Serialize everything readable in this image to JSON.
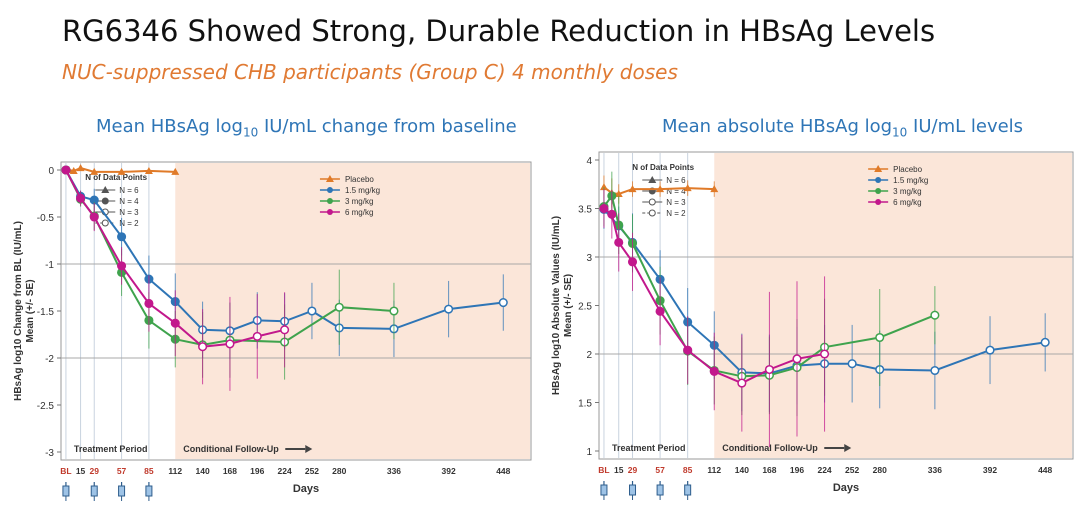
{
  "slide": {
    "title": "RG6346 Showed Strong, Durable Reduction in HBsAg Levels",
    "subtitle": "NUC-suppressed CHB participants (Group C) 4 monthly doses"
  },
  "colors": {
    "placebo": "#E07A28",
    "dose_1_5": "#2E75B6",
    "dose_3": "#3FA34D",
    "dose_6": "#C2188C",
    "followup_bg": "#FBE6D9",
    "title_blue": "#2E75B6",
    "subtitle_orange": "#E07A33"
  },
  "chart_data": [
    {
      "type": "line",
      "title_main": "Mean HBsAg log",
      "title_sub": "10",
      "title_end": " IU/mL change from baseline",
      "ylabel_line1": "HBsAg log10 Change from BL (IU/mL)",
      "ylabel_line2": "Mean (+/- SE)",
      "xlabel": "Days",
      "ylim": [
        -3,
        0
      ],
      "yticks": [
        0,
        -0.5,
        -1,
        -1.5,
        -2,
        -2.5,
        -3
      ],
      "ytick_labels": [
        "0",
        "-0.5",
        "-1",
        "-1.5",
        "-2",
        "-2.5",
        "-3"
      ],
      "gridlines": [
        -1,
        -2
      ],
      "xticks": [
        0,
        15,
        29,
        57,
        85,
        112,
        140,
        168,
        196,
        224,
        252,
        280,
        336,
        392,
        448
      ],
      "xtick_labels": [
        "BL",
        "15",
        "29",
        "57",
        "85",
        "112",
        "140",
        "168",
        "196",
        "224",
        "252",
        "280",
        "336",
        "392",
        "448"
      ],
      "followup_start": 112,
      "legend_placement": "top-center",
      "n_legend": {
        "title": "N of Data Points",
        "items": [
          "N = 6",
          "N = 4",
          "N = 3",
          "N = 2"
        ]
      },
      "treatment_label": "Treatment Period",
      "followup_label": "Conditional Follow-Up",
      "series": [
        {
          "name": "Placebo",
          "color": "#E07A28",
          "marker": "triangle",
          "points": [
            [
              0,
              0
            ],
            [
              3,
              0
            ],
            [
              8,
              -0.01
            ],
            [
              15,
              0.02
            ],
            [
              29,
              -0.02
            ],
            [
              57,
              -0.02
            ],
            [
              85,
              -0.01
            ],
            [
              112,
              -0.02
            ]
          ],
          "errors": [
            0,
            0,
            0,
            0.03,
            0.03,
            0.03,
            0.03,
            0.03
          ]
        },
        {
          "name": "1.5 mg/kg",
          "color": "#2E75B6",
          "marker": "circle",
          "points": [
            [
              0,
              0
            ],
            [
              15,
              -0.28
            ],
            [
              29,
              -0.32
            ],
            [
              57,
              -0.71
            ],
            [
              85,
              -1.16
            ],
            [
              112,
              -1.4
            ],
            [
              140,
              -1.7
            ],
            [
              168,
              -1.71
            ],
            [
              196,
              -1.6
            ],
            [
              224,
              -1.61
            ],
            [
              252,
              -1.5
            ],
            [
              280,
              -1.68
            ],
            [
              336,
              -1.69
            ],
            [
              392,
              -1.48
            ],
            [
              448,
              -1.41
            ]
          ],
          "errors": [
            0,
            0.06,
            0.12,
            0.2,
            0.25,
            0.3,
            0.3,
            0.3,
            0.3,
            0.3,
            0.3,
            0.3,
            0.3,
            0.3,
            0.3
          ],
          "open_from_index": 6
        },
        {
          "name": "3 mg/kg",
          "color": "#3FA34D",
          "marker": "circle",
          "points": [
            [
              0,
              0
            ],
            [
              15,
              -0.31
            ],
            [
              29,
              -0.49
            ],
            [
              57,
              -1.09
            ],
            [
              85,
              -1.6
            ],
            [
              112,
              -1.8
            ],
            [
              140,
              -1.86
            ],
            [
              168,
              -1.81
            ],
            [
              224,
              -1.83
            ],
            [
              280,
              -1.46
            ],
            [
              336,
              -1.5
            ]
          ],
          "errors": [
            0,
            0.08,
            0.15,
            0.25,
            0.3,
            0.3,
            0.35,
            0.4,
            0.4,
            0.4,
            0.3
          ],
          "open_from_index": 6
        },
        {
          "name": "6 mg/kg",
          "color": "#C2188C",
          "marker": "circle",
          "points": [
            [
              0,
              0
            ],
            [
              15,
              -0.3
            ],
            [
              29,
              -0.5
            ],
            [
              57,
              -1.02
            ],
            [
              85,
              -1.42
            ],
            [
              112,
              -1.63
            ],
            [
              140,
              -1.88
            ],
            [
              168,
              -1.85
            ],
            [
              196,
              -1.77
            ],
            [
              224,
              -1.7
            ]
          ],
          "errors": [
            0,
            0.08,
            0.15,
            0.2,
            0.3,
            0.35,
            0.4,
            0.5,
            0.45,
            0.4
          ],
          "open_from_index": 6
        }
      ]
    },
    {
      "type": "line",
      "title_main": "Mean absolute HBsAg log",
      "title_sub": "10",
      "title_end": " IU/mL levels",
      "ylabel_line1": "HBsAg log10 Absolute Values (IU/mL)",
      "ylabel_line2": "Mean (+/- SE)",
      "xlabel": "Days",
      "ylim": [
        1,
        4
      ],
      "yticks": [
        4,
        3.5,
        3,
        2.5,
        2,
        1.5,
        1
      ],
      "ytick_labels": [
        "4",
        "3.5",
        "3",
        "2.5",
        "2",
        "1.5",
        "1"
      ],
      "gridlines": [
        2,
        3
      ],
      "xticks": [
        0,
        15,
        29,
        57,
        85,
        112,
        140,
        168,
        196,
        224,
        252,
        280,
        336,
        392,
        448
      ],
      "xtick_labels": [
        "BL",
        "15",
        "29",
        "57",
        "85",
        "112",
        "140",
        "168",
        "196",
        "224",
        "252",
        "280",
        "336",
        "392",
        "448"
      ],
      "followup_start": 112,
      "legend_placement": "top-center",
      "n_legend": {
        "title": "N of Data Points",
        "items": [
          "N = 6",
          "N = 4",
          "N = 3",
          "N = 2"
        ]
      },
      "treatment_label": "Treatment Period",
      "followup_label": "Conditional Follow-Up",
      "series": [
        {
          "name": "Placebo",
          "color": "#E07A28",
          "marker": "triangle",
          "points": [
            [
              0,
              3.72
            ],
            [
              8,
              3.66
            ],
            [
              15,
              3.65
            ],
            [
              29,
              3.7
            ],
            [
              57,
              3.7
            ],
            [
              85,
              3.71
            ],
            [
              112,
              3.7
            ]
          ],
          "errors": [
            0.12,
            0.15,
            0.1,
            0.08,
            0.08,
            0.08,
            0.08
          ]
        },
        {
          "name": "1.5 mg/kg",
          "color": "#2E75B6",
          "marker": "circle",
          "points": [
            [
              0,
              3.49
            ],
            [
              15,
              3.32
            ],
            [
              29,
              3.15
            ],
            [
              57,
              2.77
            ],
            [
              85,
              2.33
            ],
            [
              112,
              2.09
            ],
            [
              140,
              1.81
            ],
            [
              168,
              1.8
            ],
            [
              196,
              1.88
            ],
            [
              224,
              1.9
            ],
            [
              252,
              1.9
            ],
            [
              280,
              1.84
            ],
            [
              336,
              1.83
            ],
            [
              392,
              2.04
            ],
            [
              448,
              2.12
            ]
          ],
          "errors": [
            0.2,
            0.2,
            0.3,
            0.3,
            0.35,
            0.35,
            0.4,
            0.4,
            0.4,
            0.4,
            0.4,
            0.4,
            0.4,
            0.35,
            0.3
          ],
          "open_from_index": 6
        },
        {
          "name": "3 mg/kg",
          "color": "#3FA34D",
          "marker": "circle",
          "points": [
            [
              0,
              3.52
            ],
            [
              8,
              3.63
            ],
            [
              15,
              3.33
            ],
            [
              29,
              3.14
            ],
            [
              57,
              2.55
            ],
            [
              85,
              2.03
            ],
            [
              112,
              1.83
            ],
            [
              140,
              1.77
            ],
            [
              168,
              1.78
            ],
            [
              196,
              1.86
            ],
            [
              224,
              2.07
            ],
            [
              280,
              2.17
            ],
            [
              336,
              2.4
            ]
          ],
          "errors": [
            0.2,
            0.25,
            0.3,
            0.3,
            0.35,
            0.35,
            0.35,
            0.4,
            0.4,
            0.5,
            0.5,
            0.5,
            0.3
          ],
          "open_from_index": 7
        },
        {
          "name": "6 mg/kg",
          "color": "#C2188C",
          "marker": "circle",
          "points": [
            [
              0,
              3.5
            ],
            [
              8,
              3.44
            ],
            [
              29,
              2.95
            ],
            [
              15,
              3.15
            ],
            [
              57,
              2.44
            ],
            [
              85,
              2.04
            ],
            [
              112,
              1.82
            ],
            [
              140,
              1.7
            ],
            [
              168,
              1.84
            ],
            [
              196,
              1.95
            ],
            [
              224,
              2.0
            ]
          ],
          "errors": [
            0.2,
            0.25,
            0.3,
            0.3,
            0.35,
            0.35,
            0.4,
            0.5,
            0.8,
            0.8,
            0.8
          ],
          "open_from_index": 7
        }
      ]
    }
  ]
}
